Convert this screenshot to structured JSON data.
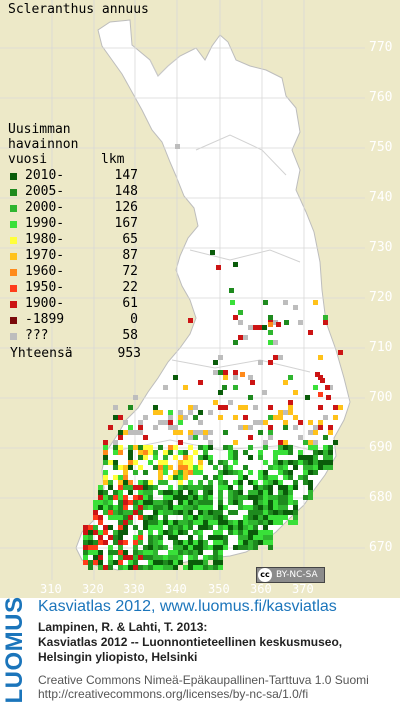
{
  "species_name": "Scleranthus annuus",
  "legend": {
    "title_lines": [
      "Uusimman",
      "havainnon"
    ],
    "col_year": "vuosi",
    "col_count": "lkm",
    "rows": [
      {
        "label": "2010-",
        "count": "147",
        "color": "#0a5c0a"
      },
      {
        "label": "2005-",
        "count": "148",
        "color": "#1e8a1e"
      },
      {
        "label": "2000-",
        "count": "126",
        "color": "#2fb52f"
      },
      {
        "label": "1990-",
        "count": "167",
        "color": "#39e039"
      },
      {
        "label": "1980-",
        "count": "65",
        "color": "#ffff3a"
      },
      {
        "label": "1970-",
        "count": "87",
        "color": "#ffc21a"
      },
      {
        "label": "1960-",
        "count": "72",
        "color": "#ff8a1a"
      },
      {
        "label": "1950-",
        "count": "22",
        "color": "#ff3c1a"
      },
      {
        "label": "1900-",
        "count": "61",
        "color": "#cc1414"
      },
      {
        "label": "-1899",
        "count": "0",
        "color": "#7a0a0a"
      },
      {
        "label": "???",
        "count": "58",
        "color": "#bdbdbd"
      }
    ],
    "total_label": "Yhteensä",
    "total_count": "953"
  },
  "y_ticks": [
    "770",
    "760",
    "750",
    "740",
    "730",
    "720",
    "710",
    "700",
    "690",
    "680",
    "670"
  ],
  "x_ticks": [
    "310",
    "320",
    "330",
    "340",
    "350",
    "360",
    "370"
  ],
  "license_badge": "BY-NC-SA",
  "logo_text": "LUOMUS",
  "atlas_link": "Kasviatlas 2012, www.luomus.fi/kasviatlas",
  "citation_lines": [
    "Lampinen, R. & Lahti, T. 2013:",
    "Kasviatlas 2012 -- Luonnontieteellinen keskusmuseo,",
    "Helsingin yliopisto, Helsinki"
  ],
  "license_lines": [
    "Creative Commons Nimeä-Epäkaupallinen-Tarttuva 1.0 Suomi",
    "http://creativecommons.org/licenses/by-nc-sa/1.0/fi"
  ],
  "colors": {
    "map_background": "#ede9c8",
    "land": "#ffffff",
    "grid": "#d8d8d8",
    "luomus_blue": "#1b75bb"
  }
}
